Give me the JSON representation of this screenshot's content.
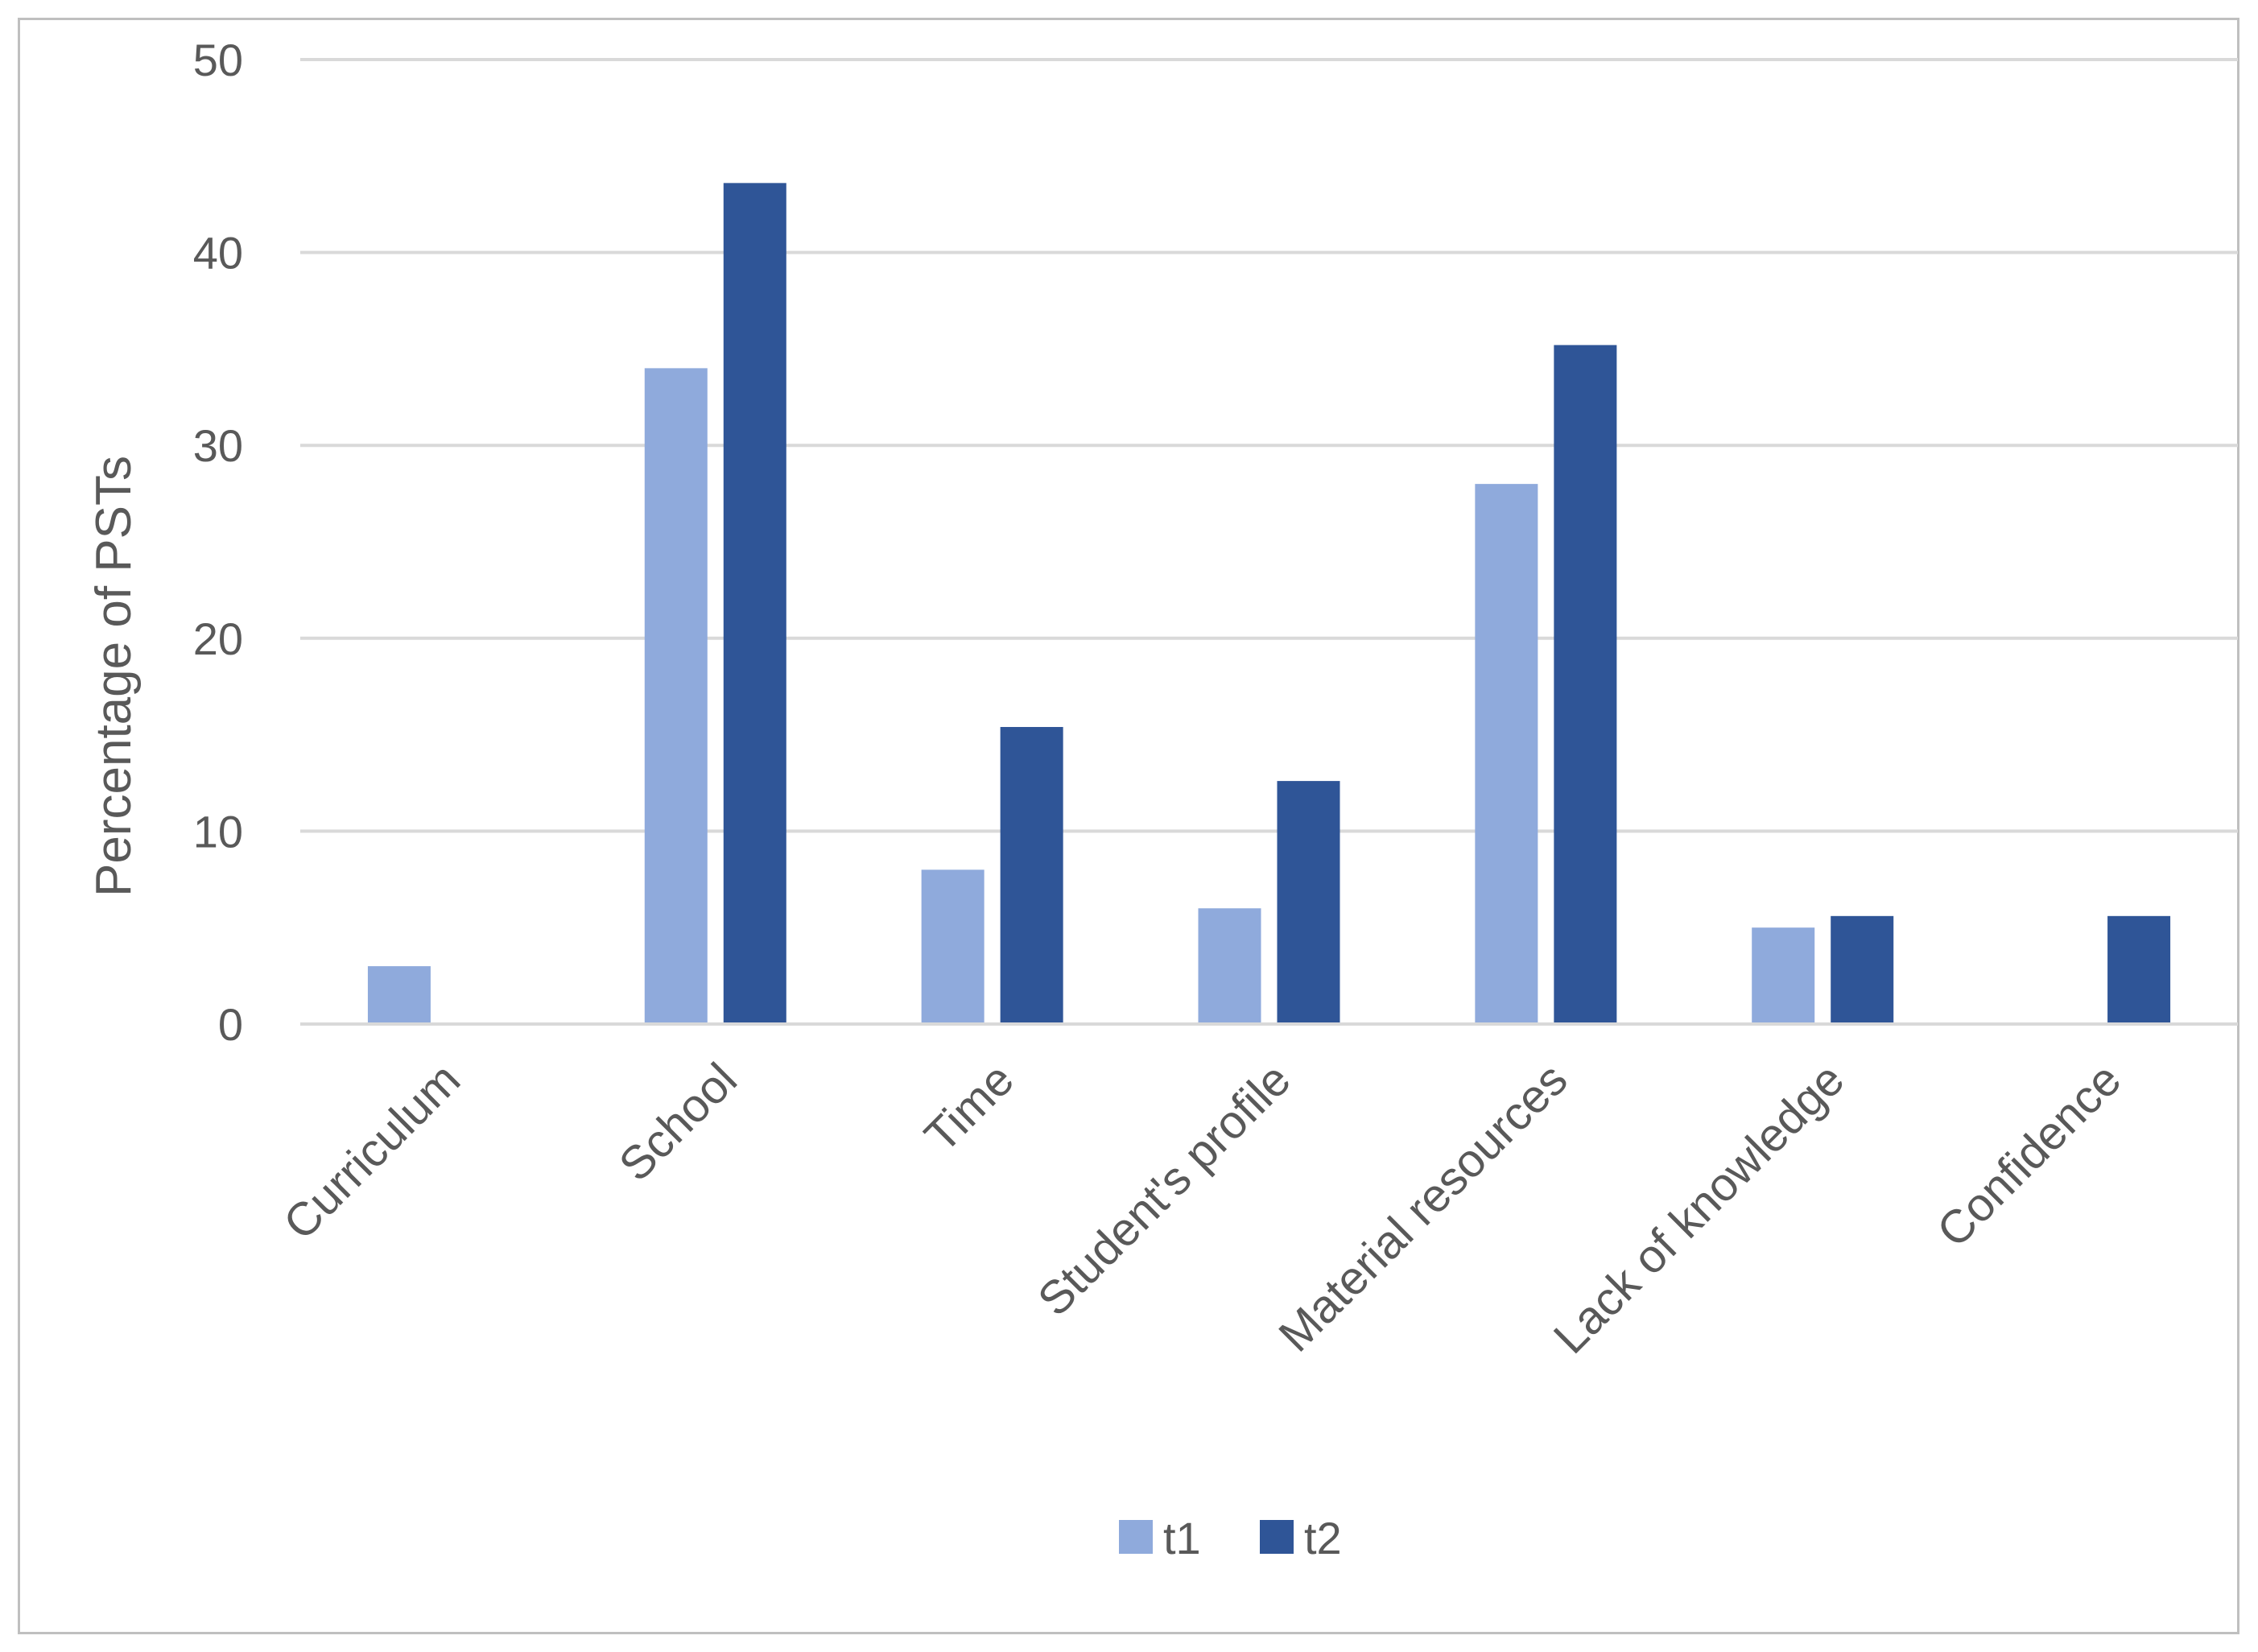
{
  "chart_data": {
    "type": "bar",
    "title": "",
    "xlabel": "",
    "ylabel": "Percentage of PSTs",
    "ylim": [
      0,
      50
    ],
    "yticks": [
      0,
      10,
      20,
      30,
      40,
      50
    ],
    "grid": true,
    "legend_position": "bottom",
    "categories": [
      "Curriculum",
      "School",
      "Time",
      "Student's profile",
      "Material resources",
      "Lack of knowledge",
      "Confidence"
    ],
    "series": [
      {
        "name": "t1",
        "color": "#8FAADC",
        "values": [
          3,
          34,
          8,
          6,
          28,
          5,
          0
        ]
      },
      {
        "name": "t2",
        "color": "#2F5597",
        "values": [
          0,
          43.6,
          15.4,
          12.6,
          35.2,
          5.6,
          5.6
        ]
      }
    ]
  }
}
